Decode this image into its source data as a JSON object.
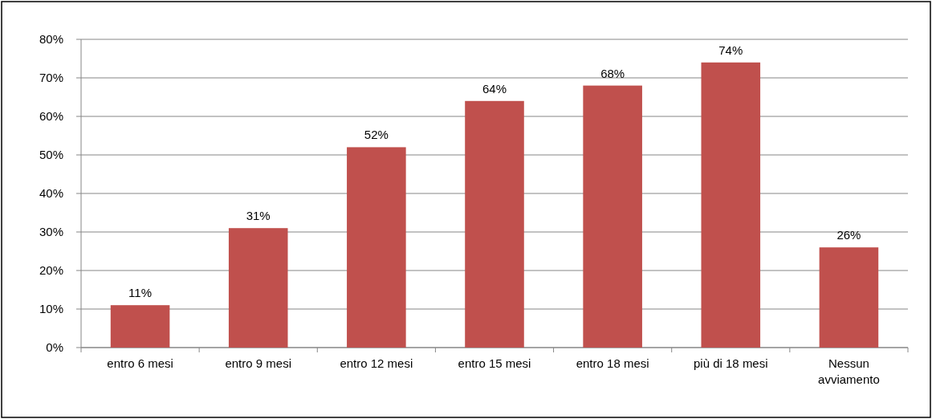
{
  "chart_data": {
    "type": "bar",
    "categories": [
      "entro 6 mesi",
      "entro 9 mesi",
      "entro 12 mesi",
      "entro 15 mesi",
      "entro 18 mesi",
      "più di 18 mesi",
      "Nessun avviamento"
    ],
    "values": [
      11,
      31,
      52,
      64,
      68,
      74,
      26
    ],
    "value_labels": [
      "11%",
      "31%",
      "52%",
      "64%",
      "68%",
      "74%",
      "26%"
    ],
    "color": "#c0504d",
    "ylim": [
      0,
      80
    ],
    "yticks": [
      {
        "value": 0,
        "label": "0%"
      },
      {
        "value": 10,
        "label": "10%"
      },
      {
        "value": 20,
        "label": "20%"
      },
      {
        "value": 30,
        "label": "30%"
      },
      {
        "value": 40,
        "label": "40%"
      },
      {
        "value": 50,
        "label": "50%"
      },
      {
        "value": 60,
        "label": "60%"
      },
      {
        "value": 70,
        "label": "70%"
      },
      {
        "value": 80,
        "label": "80%"
      }
    ],
    "grid": "y"
  }
}
